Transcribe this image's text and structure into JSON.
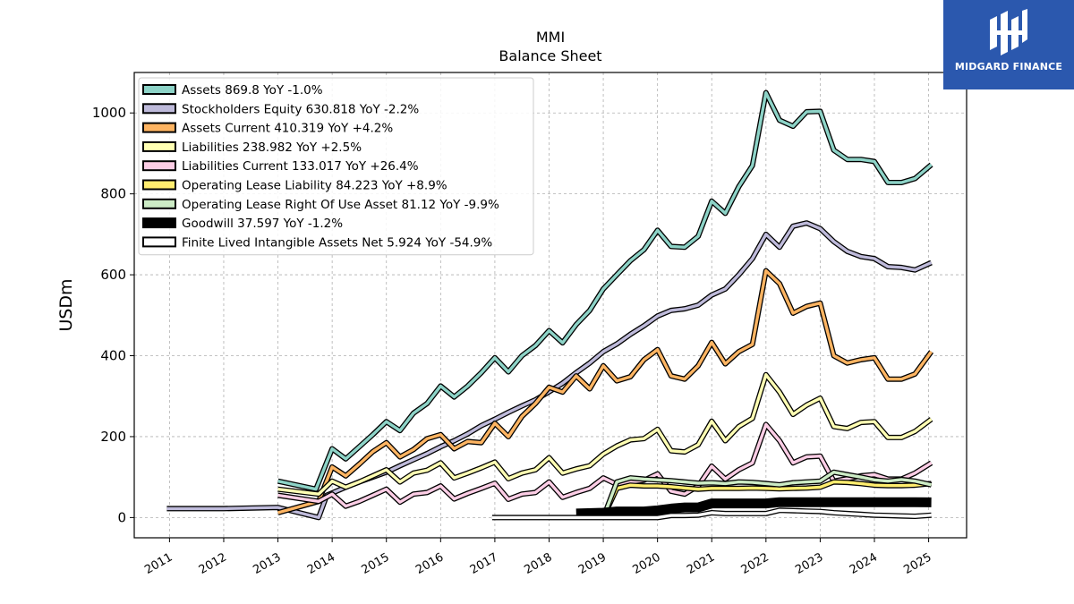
{
  "chart_data": {
    "type": "line",
    "title": "MMI",
    "subtitle": "Balance  Sheet",
    "ylabel": "USDm",
    "xlabel": "",
    "xlim": [
      2010.35,
      2025.7
    ],
    "ylim": [
      -50,
      1100
    ],
    "yticks": [
      0,
      200,
      400,
      600,
      800,
      1000
    ],
    "xticks": [
      2011,
      2012,
      2013,
      2014,
      2015,
      2016,
      2017,
      2018,
      2019,
      2020,
      2021,
      2022,
      2023,
      2024,
      2025
    ],
    "grid": true,
    "legend_position": "top-left",
    "series": [
      {
        "name": "Assets  869.8 YoY -1.0%",
        "color": "#8dd3c7",
        "x": [
          2013.0,
          2013.7,
          2014.0,
          2014.25,
          2014.5,
          2014.75,
          2015.0,
          2015.25,
          2015.5,
          2015.75,
          2016.0,
          2016.25,
          2016.5,
          2016.75,
          2017.0,
          2017.25,
          2017.5,
          2017.75,
          2018.0,
          2018.25,
          2018.5,
          2018.75,
          2019.0,
          2019.25,
          2019.5,
          2019.75,
          2020.0,
          2020.25,
          2020.5,
          2020.75,
          2021.0,
          2021.25,
          2021.5,
          2021.75,
          2022.0,
          2022.25,
          2022.5,
          2022.75,
          2023.0,
          2023.25,
          2023.5,
          2023.75,
          2024.0,
          2024.25,
          2024.5,
          2024.75,
          2025.05
        ],
        "y": [
          90,
          70,
          170,
          145,
          175,
          205,
          237,
          215,
          258,
          282,
          325,
          298,
          325,
          358,
          395,
          360,
          400,
          425,
          462,
          432,
          477,
          512,
          565,
          600,
          635,
          662,
          710,
          670,
          668,
          695,
          782,
          752,
          818,
          870,
          1050,
          982,
          967,
          1003,
          1004,
          908,
          885,
          885,
          880,
          828,
          828,
          838,
          872
        ]
      },
      {
        "name": "Stockholders Equity  630.818 YoY -2.2%",
        "color": "#bebada",
        "x": [
          2010.95,
          2012.0,
          2013.0,
          2013.75,
          2013.9,
          2014.25,
          2014.5,
          2014.75,
          2015.0,
          2015.25,
          2015.5,
          2015.75,
          2016.0,
          2016.25,
          2016.5,
          2016.75,
          2017.0,
          2017.25,
          2017.5,
          2017.75,
          2018.0,
          2018.25,
          2018.5,
          2018.75,
          2019.0,
          2019.25,
          2019.5,
          2019.75,
          2020.0,
          2020.25,
          2020.5,
          2020.75,
          2021.0,
          2021.25,
          2021.5,
          2021.75,
          2022.0,
          2022.25,
          2022.5,
          2022.75,
          2023.0,
          2023.25,
          2023.5,
          2023.75,
          2024.0,
          2024.25,
          2024.5,
          2024.75,
          2025.05
        ],
        "y": [
          22,
          22,
          25,
          0,
          55,
          75,
          88,
          100,
          112,
          128,
          143,
          158,
          175,
          190,
          207,
          227,
          243,
          260,
          276,
          291,
          311,
          332,
          358,
          382,
          410,
          429,
          453,
          474,
          498,
          512,
          516,
          525,
          550,
          565,
          600,
          640,
          700,
          668,
          720,
          728,
          714,
          682,
          658,
          645,
          640,
          620,
          618,
          612,
          630
        ]
      },
      {
        "name": "Assets Current  410.319 YoY +4.2%",
        "color": "#fdb462",
        "x": [
          2013.0,
          2013.75,
          2014.0,
          2014.25,
          2014.5,
          2014.75,
          2015.0,
          2015.25,
          2015.5,
          2015.75,
          2016.0,
          2016.25,
          2016.5,
          2016.75,
          2017.0,
          2017.25,
          2017.5,
          2017.75,
          2018.0,
          2018.25,
          2018.5,
          2018.75,
          2019.0,
          2019.25,
          2019.5,
          2019.75,
          2020.0,
          2020.25,
          2020.5,
          2020.75,
          2021.0,
          2021.25,
          2021.5,
          2021.75,
          2022.0,
          2022.25,
          2022.5,
          2022.75,
          2023.0,
          2023.25,
          2023.5,
          2023.75,
          2024.0,
          2024.25,
          2024.5,
          2024.75,
          2025.05
        ],
        "y": [
          12,
          40,
          125,
          103,
          132,
          163,
          185,
          150,
          168,
          195,
          205,
          170,
          188,
          185,
          233,
          200,
          250,
          282,
          322,
          310,
          350,
          318,
          375,
          338,
          348,
          390,
          415,
          350,
          342,
          375,
          433,
          380,
          410,
          428,
          610,
          578,
          505,
          522,
          530,
          400,
          382,
          390,
          395,
          342,
          342,
          355,
          410
        ]
      },
      {
        "name": "Liabilities  238.982 YoY +2.5%",
        "color": "#ffffb3",
        "x": [
          2013.0,
          2013.75,
          2014.0,
          2014.25,
          2014.5,
          2014.75,
          2015.0,
          2015.25,
          2015.5,
          2015.75,
          2016.0,
          2016.25,
          2016.5,
          2016.75,
          2017.0,
          2017.25,
          2017.5,
          2017.75,
          2018.0,
          2018.25,
          2018.5,
          2018.75,
          2019.0,
          2019.25,
          2019.5,
          2019.75,
          2020.0,
          2020.25,
          2020.5,
          2020.75,
          2021.0,
          2021.25,
          2021.5,
          2021.75,
          2022.0,
          2022.25,
          2022.5,
          2022.75,
          2023.0,
          2023.25,
          2023.5,
          2023.75,
          2024.0,
          2024.25,
          2024.5,
          2024.75,
          2025.05
        ],
        "y": [
          70,
          58,
          90,
          75,
          88,
          103,
          118,
          88,
          110,
          117,
          135,
          98,
          110,
          123,
          137,
          96,
          110,
          118,
          148,
          110,
          120,
          128,
          157,
          177,
          192,
          195,
          218,
          165,
          162,
          180,
          238,
          190,
          225,
          245,
          353,
          310,
          255,
          278,
          295,
          225,
          220,
          235,
          237,
          198,
          198,
          213,
          243
        ]
      },
      {
        "name": "Liabilities Current  133.017 YoY +26.4%",
        "color": "#fccde5",
        "x": [
          2013.0,
          2013.75,
          2014.0,
          2014.25,
          2014.5,
          2014.75,
          2015.0,
          2015.25,
          2015.5,
          2015.75,
          2016.0,
          2016.25,
          2016.5,
          2016.75,
          2017.0,
          2017.25,
          2017.5,
          2017.75,
          2018.0,
          2018.25,
          2018.5,
          2018.75,
          2019.0,
          2019.25,
          2019.5,
          2019.75,
          2020.0,
          2020.25,
          2020.5,
          2020.75,
          2021.0,
          2021.25,
          2021.5,
          2021.75,
          2022.0,
          2022.25,
          2022.5,
          2022.75,
          2023.0,
          2023.25,
          2023.5,
          2023.75,
          2024.0,
          2024.25,
          2024.5,
          2024.75,
          2025.05
        ],
        "y": [
          55,
          40,
          58,
          28,
          40,
          55,
          70,
          38,
          58,
          62,
          78,
          46,
          60,
          72,
          85,
          45,
          58,
          62,
          88,
          50,
          62,
          72,
          98,
          82,
          88,
          92,
          108,
          65,
          58,
          78,
          127,
          95,
          118,
          135,
          230,
          190,
          135,
          150,
          152,
          90,
          96,
          103,
          106,
          95,
          95,
          110,
          135
        ]
      },
      {
        "name": "Operating Lease Liability  84.223 YoY +8.9%",
        "color": "#ffed6f",
        "x": [
          2019.0,
          2019.25,
          2019.5,
          2019.75,
          2020.0,
          2020.25,
          2020.5,
          2020.75,
          2021.0,
          2021.25,
          2021.5,
          2021.75,
          2022.0,
          2022.25,
          2022.5,
          2022.75,
          2023.0,
          2023.25,
          2023.5,
          2023.75,
          2024.0,
          2024.25,
          2024.5,
          2024.75,
          2025.05
        ],
        "y": [
          0,
          72,
          80,
          78,
          78,
          76,
          73,
          70,
          72,
          72,
          72,
          73,
          72,
          71,
          72,
          73,
          75,
          88,
          87,
          84,
          80,
          79,
          79,
          80,
          84
        ]
      },
      {
        "name": "Operating Lease Right Of Use Asset  81.12 YoY -9.9%",
        "color": "#ccebc5",
        "x": [
          2019.0,
          2019.25,
          2019.5,
          2019.75,
          2020.0,
          2020.25,
          2020.5,
          2020.75,
          2021.0,
          2021.25,
          2021.5,
          2021.75,
          2022.0,
          2022.25,
          2022.5,
          2022.75,
          2023.0,
          2023.25,
          2023.5,
          2023.75,
          2024.0,
          2024.25,
          2024.5,
          2024.75,
          2025.05
        ],
        "y": [
          0,
          88,
          98,
          95,
          93,
          91,
          88,
          85,
          86,
          84,
          88,
          87,
          84,
          81,
          86,
          88,
          90,
          112,
          106,
          100,
          93,
          90,
          94,
          90,
          81
        ]
      },
      {
        "name": "Goodwill  37.597 YoY -1.2%",
        "color": "#000000",
        "x": [
          2018.5,
          2019.0,
          2019.25,
          2019.5,
          2019.75,
          2020.0,
          2020.25,
          2020.5,
          2020.75,
          2021.0,
          2021.25,
          2021.5,
          2021.75,
          2022.0,
          2022.25,
          2022.5,
          2022.75,
          2023.0,
          2023.25,
          2023.5,
          2023.75,
          2024.0,
          2024.25,
          2024.5,
          2024.75,
          2025.05
        ],
        "y": [
          10,
          12,
          15,
          15,
          15,
          18,
          22,
          25,
          25,
          35,
          35,
          35,
          35,
          35,
          38,
          38,
          38,
          38,
          38,
          38,
          38,
          38,
          38,
          38,
          38,
          37.6
        ]
      },
      {
        "name": "Finite Lived Intangible Assets Net  5.924 YoY -54.9%",
        "color": "#ffffff",
        "x": [
          2016.95,
          2017.5,
          2018.0,
          2018.5,
          2019.0,
          2019.5,
          2019.75,
          2020.0,
          2020.25,
          2020.5,
          2020.75,
          2021.0,
          2021.25,
          2021.5,
          2021.75,
          2022.0,
          2022.25,
          2022.5,
          2022.75,
          2023.0,
          2023.25,
          2023.5,
          2023.75,
          2024.0,
          2024.25,
          2024.5,
          2024.75,
          2025.05
        ],
        "y": [
          0,
          0,
          0,
          0,
          0,
          0,
          0,
          0,
          5,
          5,
          6,
          12,
          10,
          10,
          10,
          10,
          18,
          17,
          16,
          15,
          12,
          10,
          8,
          6,
          5,
          4,
          3,
          5.9
        ]
      }
    ]
  },
  "logo": {
    "text": "MIDGARD FINANCE"
  }
}
